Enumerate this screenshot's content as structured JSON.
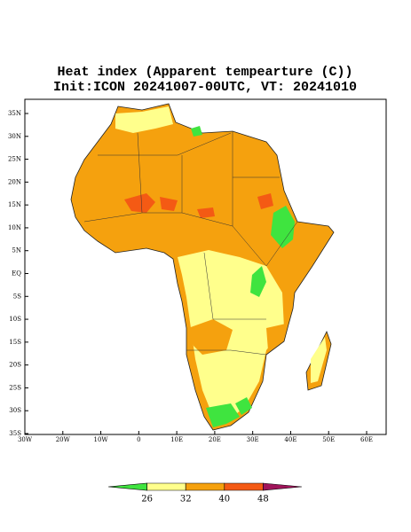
{
  "header": {
    "title": "Heat index (Apparent tempearture (C))",
    "subtitle": "Init:ICON 20241007-00UTC, VT: 20241010"
  },
  "map": {
    "lat_labels": [
      "35N",
      "30N",
      "25N",
      "20N",
      "15N",
      "10N",
      "5N",
      "EQ",
      "5S",
      "10S",
      "15S",
      "20S",
      "25S",
      "30S",
      "35S"
    ],
    "lon_labels": [
      "30W",
      "20W",
      "10W",
      "0",
      "10E",
      "20E",
      "30E",
      "40E",
      "50E",
      "60E"
    ]
  },
  "colorbar": {
    "ticks": [
      26,
      32,
      40,
      48
    ],
    "colors": [
      "#3fe43f",
      "#ffff8c",
      "#f5a10e",
      "#f45a14",
      "#a0145a"
    ]
  }
}
